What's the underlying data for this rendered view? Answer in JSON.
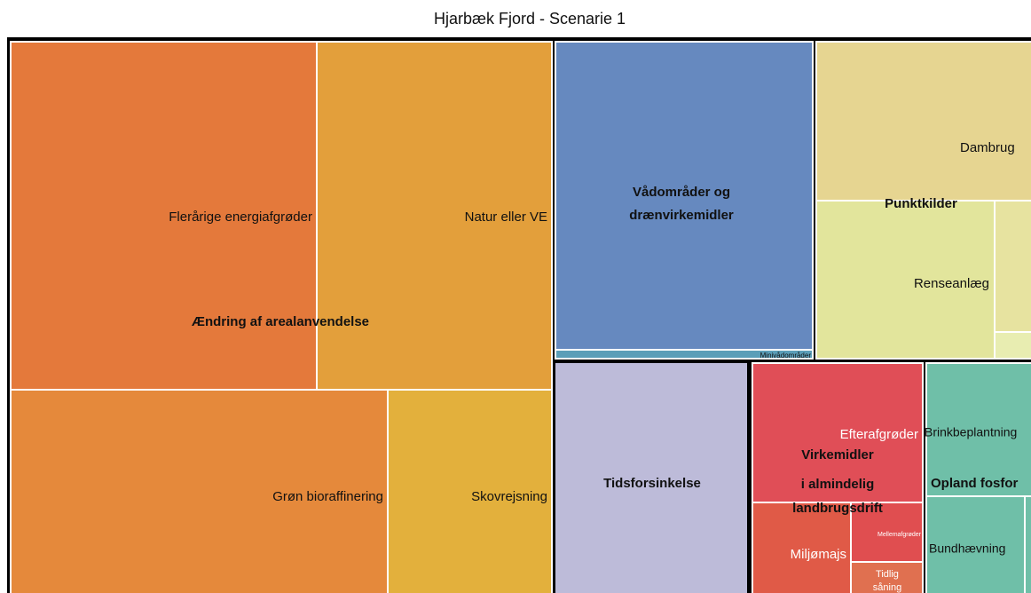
{
  "title": "Hjarbæk Fjord  - Scenarie 1",
  "groups": [
    {
      "label": "Ændring af arealanvendelse",
      "items": [
        {
          "label": "Flerårige energiafgrøder"
        },
        {
          "label": "Natur eller VE"
        },
        {
          "label": "Grøn bioraffinering"
        },
        {
          "label": "Skovrejsning"
        }
      ]
    },
    {
      "label_lines": [
        "Vådområder og",
        "drænvirkemidler"
      ],
      "items": [
        {
          "label": "Minivådområder"
        }
      ]
    },
    {
      "label": "Punktkilder",
      "items": [
        {
          "label": "Dambrug"
        },
        {
          "label": "Renseanlæg"
        }
      ]
    },
    {
      "label": "Tidsforsinkelse",
      "items": []
    },
    {
      "label_lines": [
        "Virkemidler",
        "i almindelig",
        "landbrugsdrift"
      ],
      "items": [
        {
          "label": "Efterafgrøder"
        },
        {
          "label": "Miljømajs"
        },
        {
          "label": "Mellemafgrøder"
        },
        {
          "label_lines": [
            "Tidlig",
            "såning"
          ]
        }
      ]
    },
    {
      "label": "Opland fosfor",
      "items": [
        {
          "label": "Brinkbeplantning"
        },
        {
          "label": "Bundhævning"
        }
      ]
    }
  ]
}
